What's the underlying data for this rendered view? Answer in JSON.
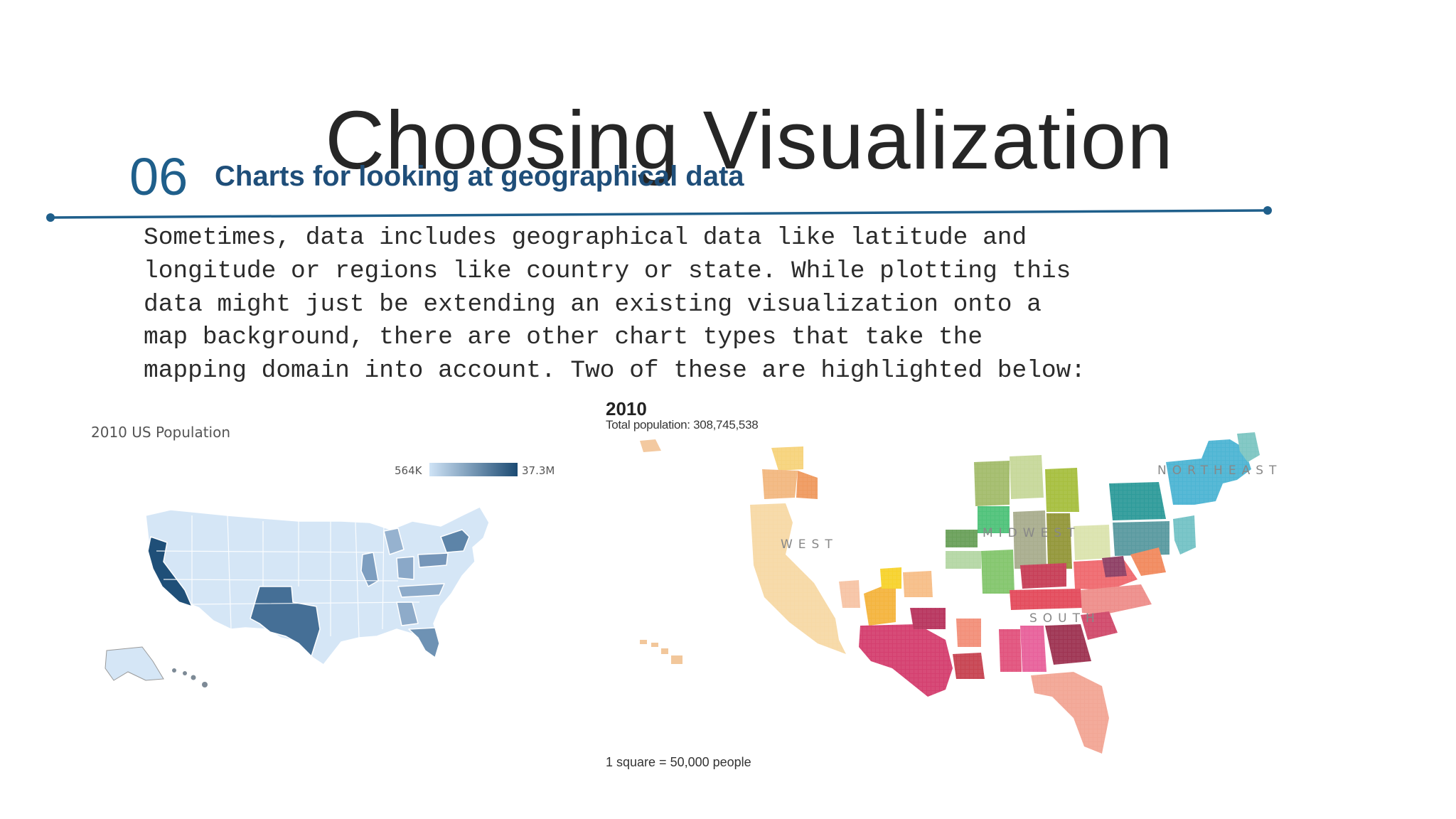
{
  "slide": {
    "title": "Choosing Visualization",
    "section_number": "06",
    "section_heading": "Charts for looking at geographical data",
    "stray_mark": ".",
    "body_lines": [
      "Sometimes, data includes geographical data like latitude and",
      "longitude or regions like country or state. While plotting this",
      "data might just be extending an existing visualization onto a",
      "map background, there are other chart types that take the",
      "mapping domain into account. Two of these are highlighted below:"
    ]
  },
  "colors": {
    "title": "#262626",
    "accent": "#1f5f8b",
    "heading": "#1f4e79",
    "choropleth_low": "#cfe3f6",
    "choropleth_high": "#1b4a72"
  },
  "choropleth": {
    "title": "2010 US Population",
    "legend_min": "564K",
    "legend_max": "37.3M"
  },
  "dot_map": {
    "year": "2010",
    "total_population": "Total population: 308,745,538",
    "regions": {
      "northeast": "NORTHEAST",
      "midwest": "MIDWEST",
      "west": "WEST",
      "south": "SOUTH"
    },
    "scale_note": "1 square = 50,000 people"
  }
}
